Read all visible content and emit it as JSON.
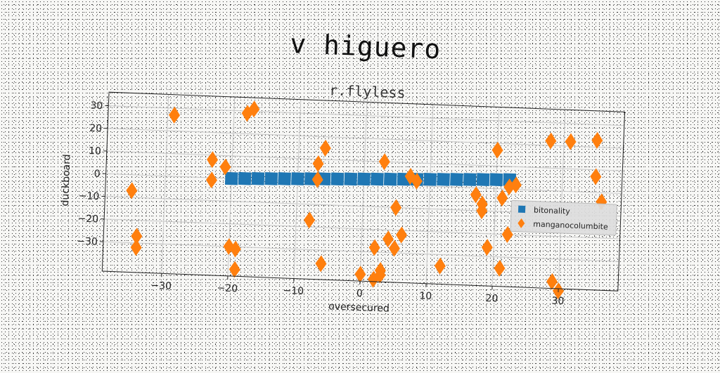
{
  "title": "v higuero",
  "chart_data": {
    "type": "scatter",
    "title": "r.flyless",
    "xlabel": "oversecured",
    "ylabel": "duckboard",
    "xlim": [
      -39,
      39
    ],
    "ylim": [
      -43,
      36
    ],
    "xticks": [
      -30,
      -20,
      -10,
      0,
      10,
      20,
      30
    ],
    "yticks": [
      -30,
      -20,
      -10,
      0,
      10,
      20,
      30
    ],
    "grid": true,
    "legend_position": "right",
    "series": [
      {
        "name": "bitonality",
        "marker": "square",
        "color": "#1f77b4",
        "x": [
          -20,
          -18,
          -16,
          -14,
          -12,
          -10,
          -8,
          -6,
          -4,
          -2,
          0,
          2,
          4,
          6,
          8,
          10,
          12,
          14,
          16,
          18,
          20,
          22
        ],
        "y": [
          0.0,
          0.2,
          0.4,
          0.6,
          0.8,
          1.0,
          1.2,
          1.4,
          1.6,
          1.8,
          2.0,
          2.2,
          2.4,
          2.6,
          2.8,
          3.0,
          3.2,
          3.4,
          3.6,
          3.8,
          4.0,
          4.2
        ]
      },
      {
        "name": "manganocolumbite",
        "marker": "diamond",
        "color": "#ff7f0e",
        "x": [
          -35,
          -34,
          -34,
          -29,
          -23,
          -23,
          -21,
          -20,
          -19,
          -19,
          -18,
          -17,
          -8,
          -7,
          -7,
          -6,
          -6,
          0,
          2,
          2,
          3,
          3,
          3,
          4,
          5,
          5,
          6,
          7,
          8,
          12,
          17,
          18,
          18,
          19,
          20,
          21,
          21,
          22,
          22,
          23,
          28,
          29,
          30,
          31,
          35,
          35,
          36
        ],
        "y": [
          -7,
          -27,
          -32,
          27,
          -1,
          8,
          5,
          -30,
          -31,
          -40,
          29,
          31,
          -17,
          8,
          1,
          -36,
          15,
          -40,
          -28,
          -42,
          -40,
          -38,
          10,
          -24,
          -28,
          -10,
          -22,
          4,
          2,
          -35,
          -3,
          -7,
          -10,
          -26,
          17,
          -35,
          -4,
          -20,
          1,
          2,
          22,
          -40,
          -44,
          22,
          23,
          7,
          -4
        ]
      }
    ]
  }
}
